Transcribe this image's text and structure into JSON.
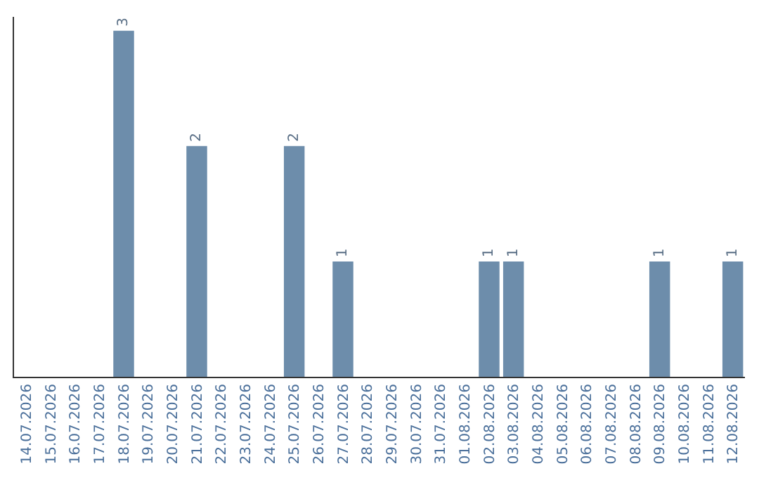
{
  "chart_data": {
    "type": "bar",
    "categories": [
      "14.07.2026",
      "15.07.2026",
      "16.07.2026",
      "17.07.2026",
      "18.07.2026",
      "19.07.2026",
      "20.07.2026",
      "21.07.2026",
      "22.07.2026",
      "23.07.2026",
      "24.07.2026",
      "25.07.2026",
      "26.07.2026",
      "27.07.2026",
      "28.07.2026",
      "29.07.2026",
      "30.07.2026",
      "31.07.2026",
      "01.08.2026",
      "02.08.2026",
      "03.08.2026",
      "04.08.2026",
      "05.08.2026",
      "06.08.2026",
      "07.08.2026",
      "08.08.2026",
      "09.08.2026",
      "10.08.2026",
      "11.08.2026",
      "12.08.2026"
    ],
    "values": [
      0,
      0,
      0,
      0,
      3,
      0,
      0,
      2,
      0,
      0,
      0,
      2,
      0,
      1,
      0,
      0,
      0,
      0,
      0,
      1,
      1,
      0,
      0,
      0,
      0,
      0,
      1,
      0,
      0,
      1
    ],
    "value_labels": [
      null,
      null,
      null,
      null,
      "3",
      null,
      null,
      "2",
      null,
      null,
      null,
      "2",
      null,
      "1",
      null,
      null,
      null,
      null,
      null,
      "1",
      "1",
      null,
      null,
      null,
      null,
      null,
      "1",
      null,
      null,
      "1"
    ],
    "color": "#6d8dab",
    "tick_labels": "x",
    "legend": false
  }
}
